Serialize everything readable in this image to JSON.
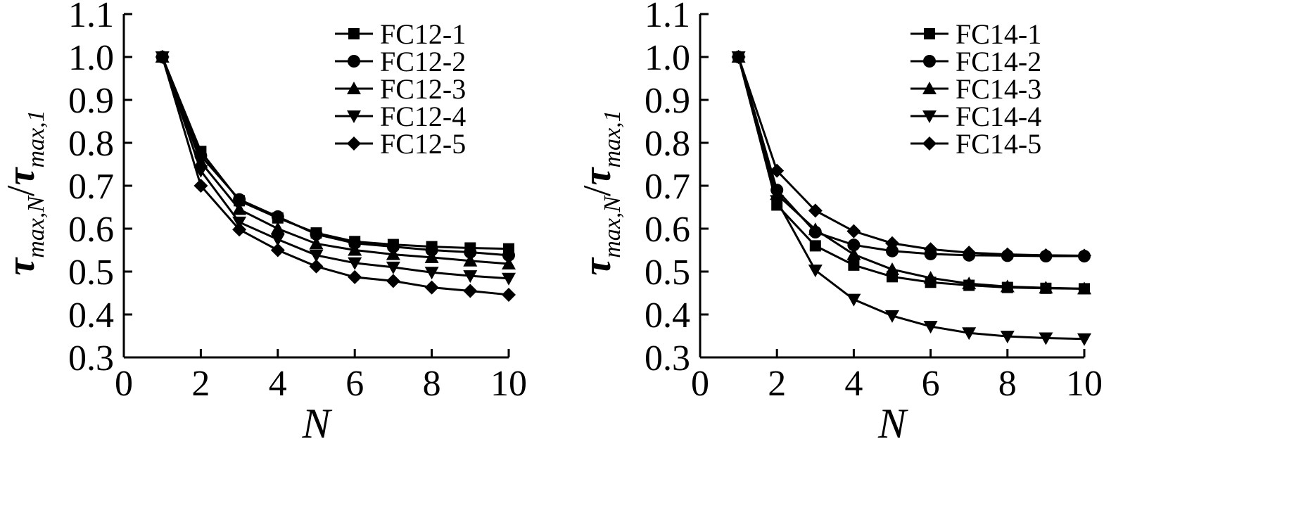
{
  "chart_data": [
    {
      "type": "line",
      "title": "",
      "xlabel": "N",
      "ylabel": {
        "main1": "τ",
        "sub1": "max,N",
        "slash": "/",
        "main2": "τ",
        "sub2": "max,1"
      },
      "xlim": [
        0,
        10
      ],
      "ylim": [
        0.3,
        1.1
      ],
      "xticks": [
        "0",
        "2",
        "4",
        "6",
        "8",
        "10"
      ],
      "yticks": [
        "0.3",
        "0.4",
        "0.5",
        "0.6",
        "0.7",
        "0.8",
        "0.9",
        "1.0",
        "1.1"
      ],
      "grid": false,
      "legend_position": "top-right",
      "x": [
        1,
        2,
        3,
        4,
        5,
        6,
        7,
        8,
        9,
        10
      ],
      "series": [
        {
          "name": "FC12-1",
          "marker": "square",
          "values": [
            1.0,
            0.78,
            0.665,
            0.625,
            0.59,
            0.57,
            0.563,
            0.558,
            0.555,
            0.553
          ]
        },
        {
          "name": "FC12-2",
          "marker": "circle",
          "values": [
            1.0,
            0.77,
            0.668,
            0.628,
            0.587,
            0.566,
            0.558,
            0.55,
            0.545,
            0.538
          ]
        },
        {
          "name": "FC12-3",
          "marker": "triangle-up",
          "values": [
            1.0,
            0.755,
            0.645,
            0.6,
            0.565,
            0.55,
            0.54,
            0.533,
            0.525,
            0.518
          ]
        },
        {
          "name": "FC12-4",
          "marker": "triangle-down",
          "values": [
            1.0,
            0.735,
            0.615,
            0.575,
            0.538,
            0.52,
            0.51,
            0.498,
            0.49,
            0.484
          ]
        },
        {
          "name": "FC12-5",
          "marker": "diamond",
          "values": [
            1.0,
            0.7,
            0.598,
            0.55,
            0.512,
            0.487,
            0.478,
            0.463,
            0.455,
            0.446
          ]
        }
      ]
    },
    {
      "type": "line",
      "title": "",
      "xlabel": "N",
      "ylabel": {
        "main1": "τ",
        "sub1": "max,N",
        "slash": "/",
        "main2": "τ",
        "sub2": "max,1"
      },
      "xlim": [
        0,
        10
      ],
      "ylim": [
        0.3,
        1.1
      ],
      "xticks": [
        "0",
        "2",
        "4",
        "6",
        "8",
        "10"
      ],
      "yticks": [
        "0.3",
        "0.4",
        "0.5",
        "0.6",
        "0.7",
        "0.8",
        "0.9",
        "1.0",
        "1.1"
      ],
      "grid": false,
      "legend_position": "top-right",
      "x": [
        1,
        2,
        3,
        4,
        5,
        6,
        7,
        8,
        9,
        10
      ],
      "series": [
        {
          "name": "FC14-1",
          "marker": "square",
          "values": [
            1.0,
            0.655,
            0.56,
            0.515,
            0.488,
            0.475,
            0.468,
            0.463,
            0.461,
            0.46
          ]
        },
        {
          "name": "FC14-2",
          "marker": "circle",
          "values": [
            1.0,
            0.69,
            0.592,
            0.562,
            0.548,
            0.541,
            0.538,
            0.537,
            0.536,
            0.536
          ]
        },
        {
          "name": "FC14-3",
          "marker": "triangle-up",
          "values": [
            1.0,
            0.68,
            0.598,
            0.54,
            0.505,
            0.485,
            0.472,
            0.465,
            0.462,
            0.46
          ]
        },
        {
          "name": "FC14-4",
          "marker": "triangle-down",
          "values": [
            1.0,
            0.665,
            0.503,
            0.435,
            0.397,
            0.372,
            0.357,
            0.349,
            0.345,
            0.343
          ]
        },
        {
          "name": "FC14-5",
          "marker": "diamond",
          "values": [
            1.0,
            0.735,
            0.642,
            0.594,
            0.566,
            0.552,
            0.544,
            0.54,
            0.538,
            0.537
          ]
        }
      ]
    }
  ]
}
